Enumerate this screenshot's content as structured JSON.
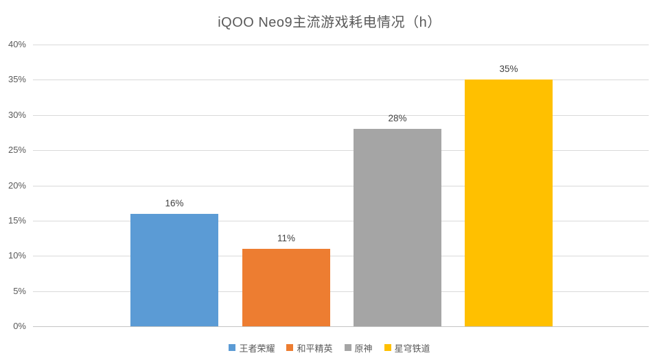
{
  "chart_data": {
    "type": "bar",
    "title": "iQOO Neo9主流游戏耗电情况（h）",
    "categories": [
      "王者荣耀",
      "和平精英",
      "原神",
      "星穹铁道"
    ],
    "values": [
      16,
      11,
      28,
      35
    ],
    "data_labels": [
      "16%",
      "11%",
      "28%",
      "35%"
    ],
    "colors": [
      "#5B9BD5",
      "#ED7D31",
      "#A5A5A5",
      "#FFC000"
    ],
    "xlabel": "",
    "ylabel": "",
    "ylim": [
      0,
      40
    ],
    "ytick_step": 5,
    "yticks": [
      "0%",
      "5%",
      "10%",
      "15%",
      "20%",
      "25%",
      "30%",
      "35%",
      "40%"
    ],
    "grid": true,
    "legend": [
      "王者荣耀",
      "和平精英",
      "原神",
      "星穹铁道"
    ],
    "legend_position": "bottom"
  },
  "colors": {
    "background": "#ffffff",
    "gridline": "#d9d9d9",
    "axis_line": "#c3c3c3",
    "title_text": "#595959",
    "tick_text": "#595959",
    "data_label_text": "#404040"
  }
}
